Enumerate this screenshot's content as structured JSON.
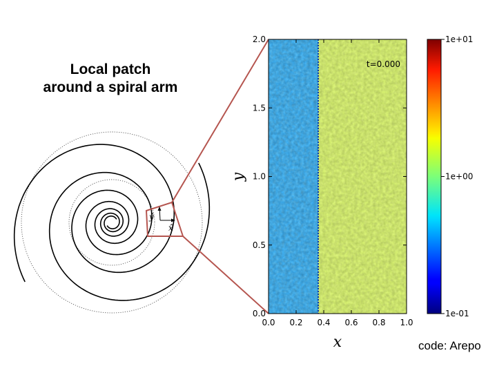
{
  "title": {
    "line1": "Local patch",
    "line2": "around a spiral arm"
  },
  "credit": "code: Arepo",
  "spiral_diagram": {
    "local_axis_x_label": "x̂",
    "local_axis_y_label": "ŷ",
    "patch_outline_color": "#b5554f"
  },
  "chart_data": {
    "type": "heatmap",
    "title": "",
    "annotation": "t=0.000",
    "xlabel": "x",
    "ylabel": "y",
    "xlim": [
      0.0,
      1.0
    ],
    "ylim": [
      0.0,
      2.0
    ],
    "x_ticks": [
      "0.0",
      "0.2",
      "0.4",
      "0.6",
      "0.8",
      "1.0"
    ],
    "y_ticks": [
      "0.0",
      "0.5",
      "1.0",
      "1.5",
      "2.0"
    ],
    "step_x": 0.36,
    "left_region_value": 0.3,
    "right_region_value": 1.3,
    "colorbar": {
      "scale": "log",
      "min": 0.1,
      "max": 10,
      "ticks": [
        "1e-01",
        "1e+00",
        "1e+01"
      ]
    }
  }
}
